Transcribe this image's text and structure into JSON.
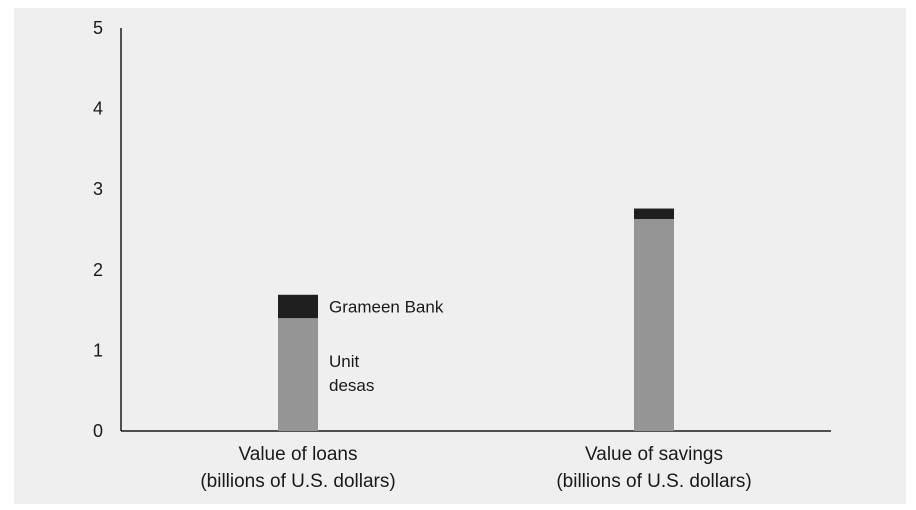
{
  "chart_data": {
    "type": "bar",
    "stacked": true,
    "categories": [
      [
        "Value of loans",
        "(billions of U.S. dollars)"
      ],
      [
        "Value of savings",
        "(billions of U.S. dollars)"
      ]
    ],
    "series": [
      {
        "name": "Unit desas",
        "label_lines": [
          "Unit",
          "desas"
        ],
        "values": [
          1.4,
          2.63
        ],
        "color": "#959595"
      },
      {
        "name": "Grameen Bank",
        "label_lines": [
          "Grameen Bank"
        ],
        "values": [
          0.29,
          0.13
        ],
        "color": "#1f1f1f"
      }
    ],
    "y_ticks": [
      "0",
      "1",
      "2",
      "3",
      "4",
      "5"
    ],
    "ylim": [
      0,
      5
    ],
    "grid": false,
    "background": "#efefef",
    "axis_color": "#1a1a1a"
  }
}
